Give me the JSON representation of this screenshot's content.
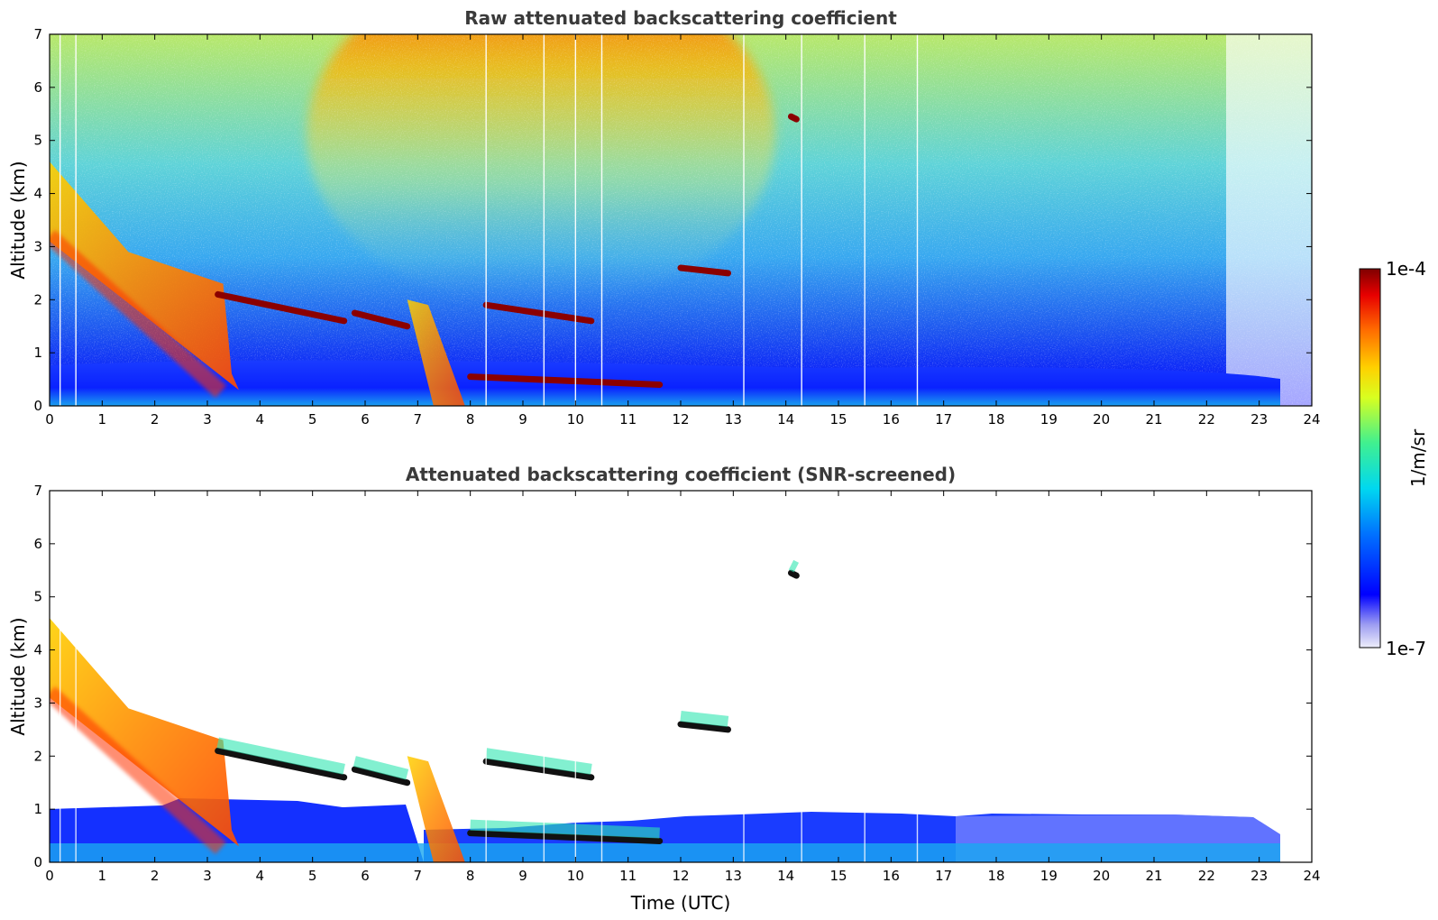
{
  "chart_data": [
    {
      "type": "heatmap",
      "title": "Raw attenuated backscattering coefficient",
      "xlabel": "",
      "ylabel": "Altitude (km)",
      "xlim": [
        0,
        24
      ],
      "ylim": [
        0,
        7
      ],
      "xticks": [
        "0",
        "1",
        "2",
        "3",
        "4",
        "5",
        "6",
        "7",
        "8",
        "9",
        "10",
        "11",
        "12",
        "13",
        "14",
        "15",
        "16",
        "17",
        "18",
        "19",
        "20",
        "21",
        "22",
        "23",
        "24"
      ],
      "yticks": [
        "0",
        "1",
        "2",
        "3",
        "4",
        "5",
        "6",
        "7"
      ],
      "grid": false,
      "features": [
        {
          "name": "tilted aerosol/cloud layer",
          "x": [
            0.0,
            3.6
          ],
          "y": [
            3.1,
            0.3
          ],
          "level": "high"
        },
        {
          "name": "thin cloud layer",
          "x": [
            3.2,
            5.6
          ],
          "y": [
            2.1,
            1.6
          ],
          "level": "very high"
        },
        {
          "name": "thin cloud layer",
          "x": [
            5.8,
            6.8
          ],
          "y": [
            1.75,
            1.5
          ],
          "level": "very high"
        },
        {
          "name": "cloud layer",
          "x": [
            8.3,
            10.3
          ],
          "y": [
            1.9,
            1.6
          ],
          "level": "very high"
        },
        {
          "name": "low cloud layer",
          "x": [
            8.0,
            11.6
          ],
          "y": [
            0.55,
            0.4
          ],
          "level": "very high"
        },
        {
          "name": "cloud layer",
          "x": [
            12.0,
            12.9
          ],
          "y": [
            2.6,
            2.5
          ],
          "level": "very high"
        },
        {
          "name": "isolated cloud",
          "x": [
            14.1,
            14.2
          ],
          "y": [
            5.45,
            5.4
          ],
          "level": "very high"
        },
        {
          "name": "boundary layer",
          "x": [
            0.0,
            23.7
          ],
          "y": [
            0.9,
            0.2
          ],
          "level": "low"
        }
      ]
    },
    {
      "type": "heatmap",
      "title": "Attenuated backscattering coefficient (SNR-screened)",
      "xlabel": "Time (UTC)",
      "ylabel": "Altitude (km)",
      "xlim": [
        0,
        24
      ],
      "ylim": [
        0,
        7
      ],
      "xticks": [
        "0",
        "1",
        "2",
        "3",
        "4",
        "5",
        "6",
        "7",
        "8",
        "9",
        "10",
        "11",
        "12",
        "13",
        "14",
        "15",
        "16",
        "17",
        "18",
        "19",
        "20",
        "21",
        "22",
        "23",
        "24"
      ],
      "yticks": [
        "0",
        "1",
        "2",
        "3",
        "4",
        "5",
        "6",
        "7"
      ],
      "grid": false
    }
  ],
  "colorbar": {
    "label": "1/m/sr",
    "max_label": "1e-4",
    "min_label": "1e-7",
    "scale": "log",
    "colormap": "jet",
    "colors": [
      "#e6e6f5",
      "#0000ff",
      "#00bfff",
      "#3ff2a0",
      "#ffff00",
      "#ff7a00",
      "#ee0000",
      "#7f0000"
    ]
  }
}
